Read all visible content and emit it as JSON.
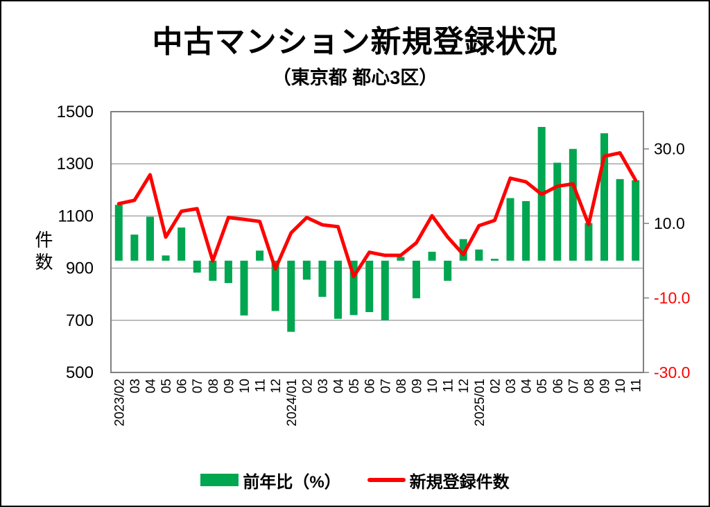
{
  "header": {
    "title": "中古マンション新規登録状況",
    "subtitle": "（東京都 都心3区）"
  },
  "legend": {
    "items": [
      {
        "label": "前年比（%）",
        "swatch": "bar",
        "color": "#00a650"
      },
      {
        "label": "新規登録件数",
        "swatch": "line",
        "color": "#ff0000"
      }
    ]
  },
  "chart_data": {
    "type": "bar",
    "subtype": "combo-bar-line",
    "title": "中古マンション新規登録状況（東京都 都心3区）",
    "categories": [
      "2023/02",
      "03",
      "04",
      "05",
      "06",
      "07",
      "08",
      "09",
      "10",
      "11",
      "12",
      "2024/01",
      "02",
      "03",
      "04",
      "05",
      "06",
      "07",
      "08",
      "09",
      "10",
      "11",
      "12",
      "2025/01",
      "02",
      "03",
      "04",
      "05",
      "06",
      "07",
      "08",
      "09",
      "10",
      "11"
    ],
    "series": [
      {
        "name": "前年比（%）",
        "type": "bar",
        "axis": "right",
        "color": "#00a650",
        "values": [
          15.0,
          7.0,
          11.8,
          1.4,
          8.9,
          -3.2,
          -5.4,
          -6.0,
          -14.7,
          2.7,
          -13.5,
          -19.1,
          -5.1,
          -9.7,
          -15.6,
          -14.6,
          -13.8,
          -16.0,
          1.0,
          -10.1,
          2.4,
          -5.4,
          5.8,
          3.0,
          0.5,
          16.8,
          16.0,
          35.9,
          26.3,
          30.0,
          10.1,
          34.2,
          21.9,
          21.6
        ]
      },
      {
        "name": "新規登録件数",
        "type": "line",
        "axis": "left",
        "color": "#ff0000",
        "values": [
          1147,
          1160,
          1258,
          1019,
          1118,
          1128,
          928,
          1094,
          1087,
          1079,
          897,
          1035,
          1094,
          1066,
          1059,
          868,
          961,
          949,
          949,
          997,
          1101,
          1019,
          952,
          1063,
          1083,
          1245,
          1231,
          1183,
          1214,
          1223,
          1067,
          1329,
          1342,
          1237
        ]
      }
    ],
    "left_axis": {
      "title": "件数",
      "min": 500,
      "max": 1500,
      "ticks": [
        {
          "value": 1500,
          "label": "1500",
          "color": "#000000"
        },
        {
          "value": 1300,
          "label": "1300",
          "color": "#000000"
        },
        {
          "value": 1100,
          "label": "1100",
          "color": "#000000"
        },
        {
          "value": 900,
          "label": "900",
          "color": "#000000"
        },
        {
          "value": 700,
          "label": "700",
          "color": "#000000"
        },
        {
          "value": 500,
          "label": "500",
          "color": "#000000"
        }
      ]
    },
    "right_axis": {
      "min": -30,
      "max": 40,
      "ticks": [
        {
          "value": 30,
          "label": "30.0",
          "color": "#000000"
        },
        {
          "value": 10,
          "label": "10.0",
          "color": "#000000"
        },
        {
          "value": -10,
          "label": "-10.0",
          "color": "#ff0000"
        },
        {
          "value": -30,
          "label": "-30.0",
          "color": "#ff0000"
        }
      ]
    },
    "grid": true,
    "grid_color": "#a6a6a6",
    "border_color": "#7f7f7f",
    "legend_position": "bottom"
  }
}
